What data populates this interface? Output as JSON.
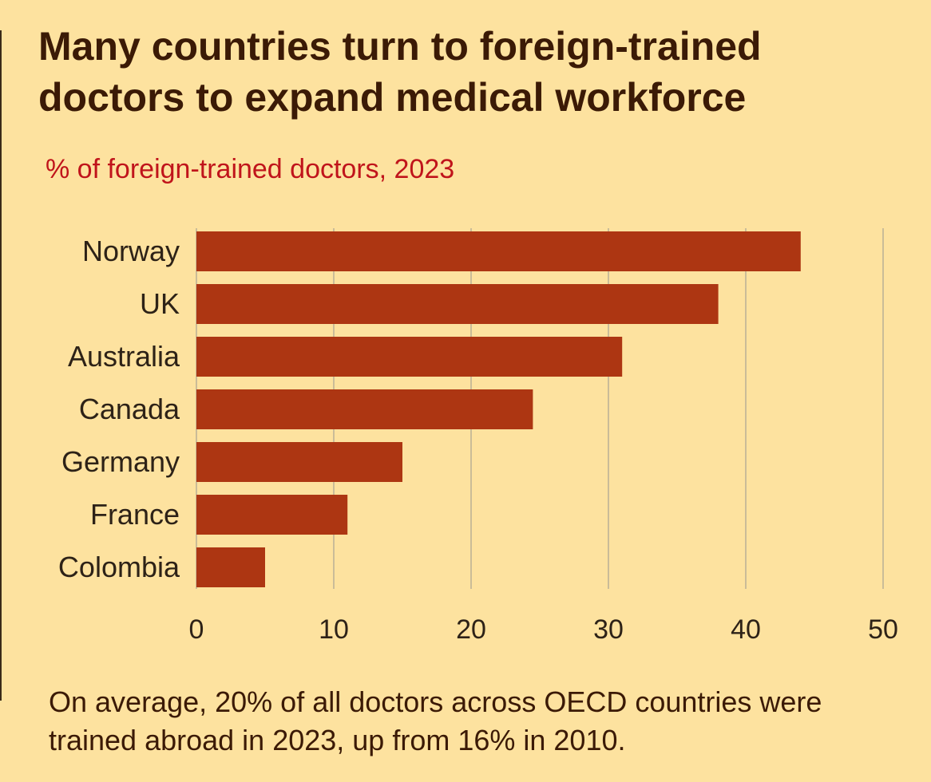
{
  "title": "Many countries turn to foreign-trained doctors to expand medical workforce",
  "subtitle": "% of foreign-trained doctors, 2023",
  "footnote": "On average, 20% of all doctors across OECD countries were trained abroad in 2023, up from 16% in 2010.",
  "colors": {
    "background": "#fde29f",
    "bar": "#ad3612",
    "title": "#3b1a06",
    "subtitle": "#c0141b",
    "grid": "#a9a394",
    "text": "#2d2217"
  },
  "chart_data": {
    "type": "bar",
    "orientation": "horizontal",
    "categories": [
      "Norway",
      "UK",
      "Australia",
      "Canada",
      "Germany",
      "France",
      "Colombia"
    ],
    "values": [
      44,
      38,
      31,
      24.5,
      15,
      11,
      5
    ],
    "xlim": [
      0,
      50
    ],
    "xticks": [
      "0",
      "10",
      "20",
      "30",
      "40",
      "50"
    ],
    "grid": true,
    "legend": "none"
  }
}
